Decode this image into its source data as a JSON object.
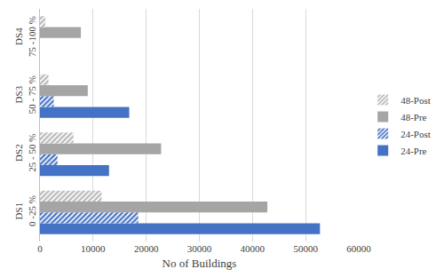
{
  "chart_data": {
    "type": "bar",
    "orientation": "horizontal",
    "categories": [
      "DS1\n0 -25 %",
      "DS2\n25 - 50 %",
      "DS3\n50 - 75 %",
      "DS4\n75 -100 %"
    ],
    "series": [
      {
        "name": "24-Pre",
        "color": "#4472c4",
        "marker": "solid",
        "values": [
          52700,
          13000,
          16800,
          0
        ]
      },
      {
        "name": "24-Post",
        "color": "#4472c4",
        "marker": "hatched",
        "values": [
          18500,
          3300,
          2600,
          0
        ]
      },
      {
        "name": "48-Pre",
        "color": "#a5a5a5",
        "marker": "solid",
        "values": [
          42800,
          22800,
          9000,
          7700
        ]
      },
      {
        "name": "48-Post",
        "color": "#b8b8b8",
        "marker": "hatched",
        "values": [
          11600,
          6300,
          1600,
          1000
        ]
      }
    ],
    "x_label": "No of Buildings",
    "xlim": [
      0,
      60000
    ],
    "xticks": [
      0,
      10000,
      20000,
      30000,
      40000,
      50000,
      60000
    ],
    "grid": true,
    "legend": "right"
  }
}
